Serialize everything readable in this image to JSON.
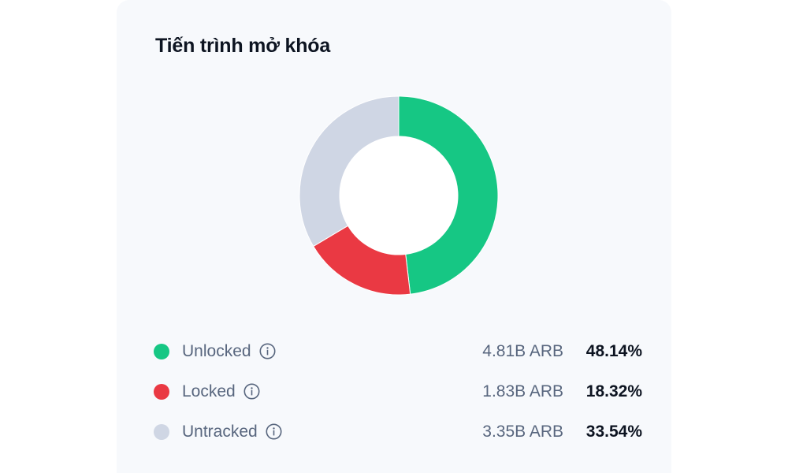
{
  "title": "Tiến trình mở khóa",
  "chart_data": {
    "type": "pie",
    "title": "Tiến trình mở khóa",
    "donut": true,
    "categories": [
      "Unlocked",
      "Locked",
      "Untracked"
    ],
    "values": [
      48.14,
      18.32,
      33.54
    ],
    "amounts": [
      "4.81B ARB",
      "1.83B ARB",
      "3.35B ARB"
    ],
    "percent_labels": [
      "48.14%",
      "18.32%",
      "33.54%"
    ],
    "colors": [
      "#16c784",
      "#ea3943",
      "#cfd6e4"
    ]
  },
  "legend": [
    {
      "label": "Unlocked",
      "amount": "4.81B ARB",
      "percent": "48.14%",
      "color": "#16c784",
      "icon": "info-icon"
    },
    {
      "label": "Locked",
      "amount": "1.83B ARB",
      "percent": "18.32%",
      "color": "#ea3943",
      "icon": "info-icon"
    },
    {
      "label": "Untracked",
      "amount": "3.35B ARB",
      "percent": "33.54%",
      "color": "#cfd6e4",
      "icon": "info-icon"
    }
  ]
}
